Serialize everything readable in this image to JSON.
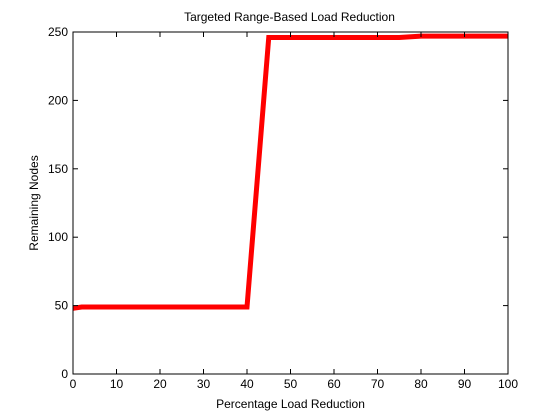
{
  "chart_data": {
    "type": "line",
    "title": "Targeted Range-Based Load Reduction",
    "xlabel": "Percentage Load Reduction",
    "ylabel": "Remaining Nodes",
    "xlim": [
      0,
      100
    ],
    "ylim": [
      0,
      250
    ],
    "xticks": [
      0,
      10,
      20,
      30,
      40,
      50,
      60,
      70,
      80,
      90,
      100
    ],
    "yticks": [
      0,
      50,
      100,
      150,
      200,
      250
    ],
    "grid": false,
    "legend": "none",
    "series": [
      {
        "color": "#ff0000",
        "x": [
          0,
          2,
          5,
          10,
          15,
          20,
          25,
          30,
          35,
          40,
          45,
          50,
          55,
          60,
          65,
          70,
          75,
          80,
          85,
          90,
          95,
          100
        ],
        "y": [
          48,
          49,
          49,
          49,
          49,
          49,
          49,
          49,
          49,
          49,
          246,
          246,
          246,
          246,
          246,
          246,
          246,
          247,
          247,
          247,
          247,
          247
        ]
      }
    ]
  }
}
